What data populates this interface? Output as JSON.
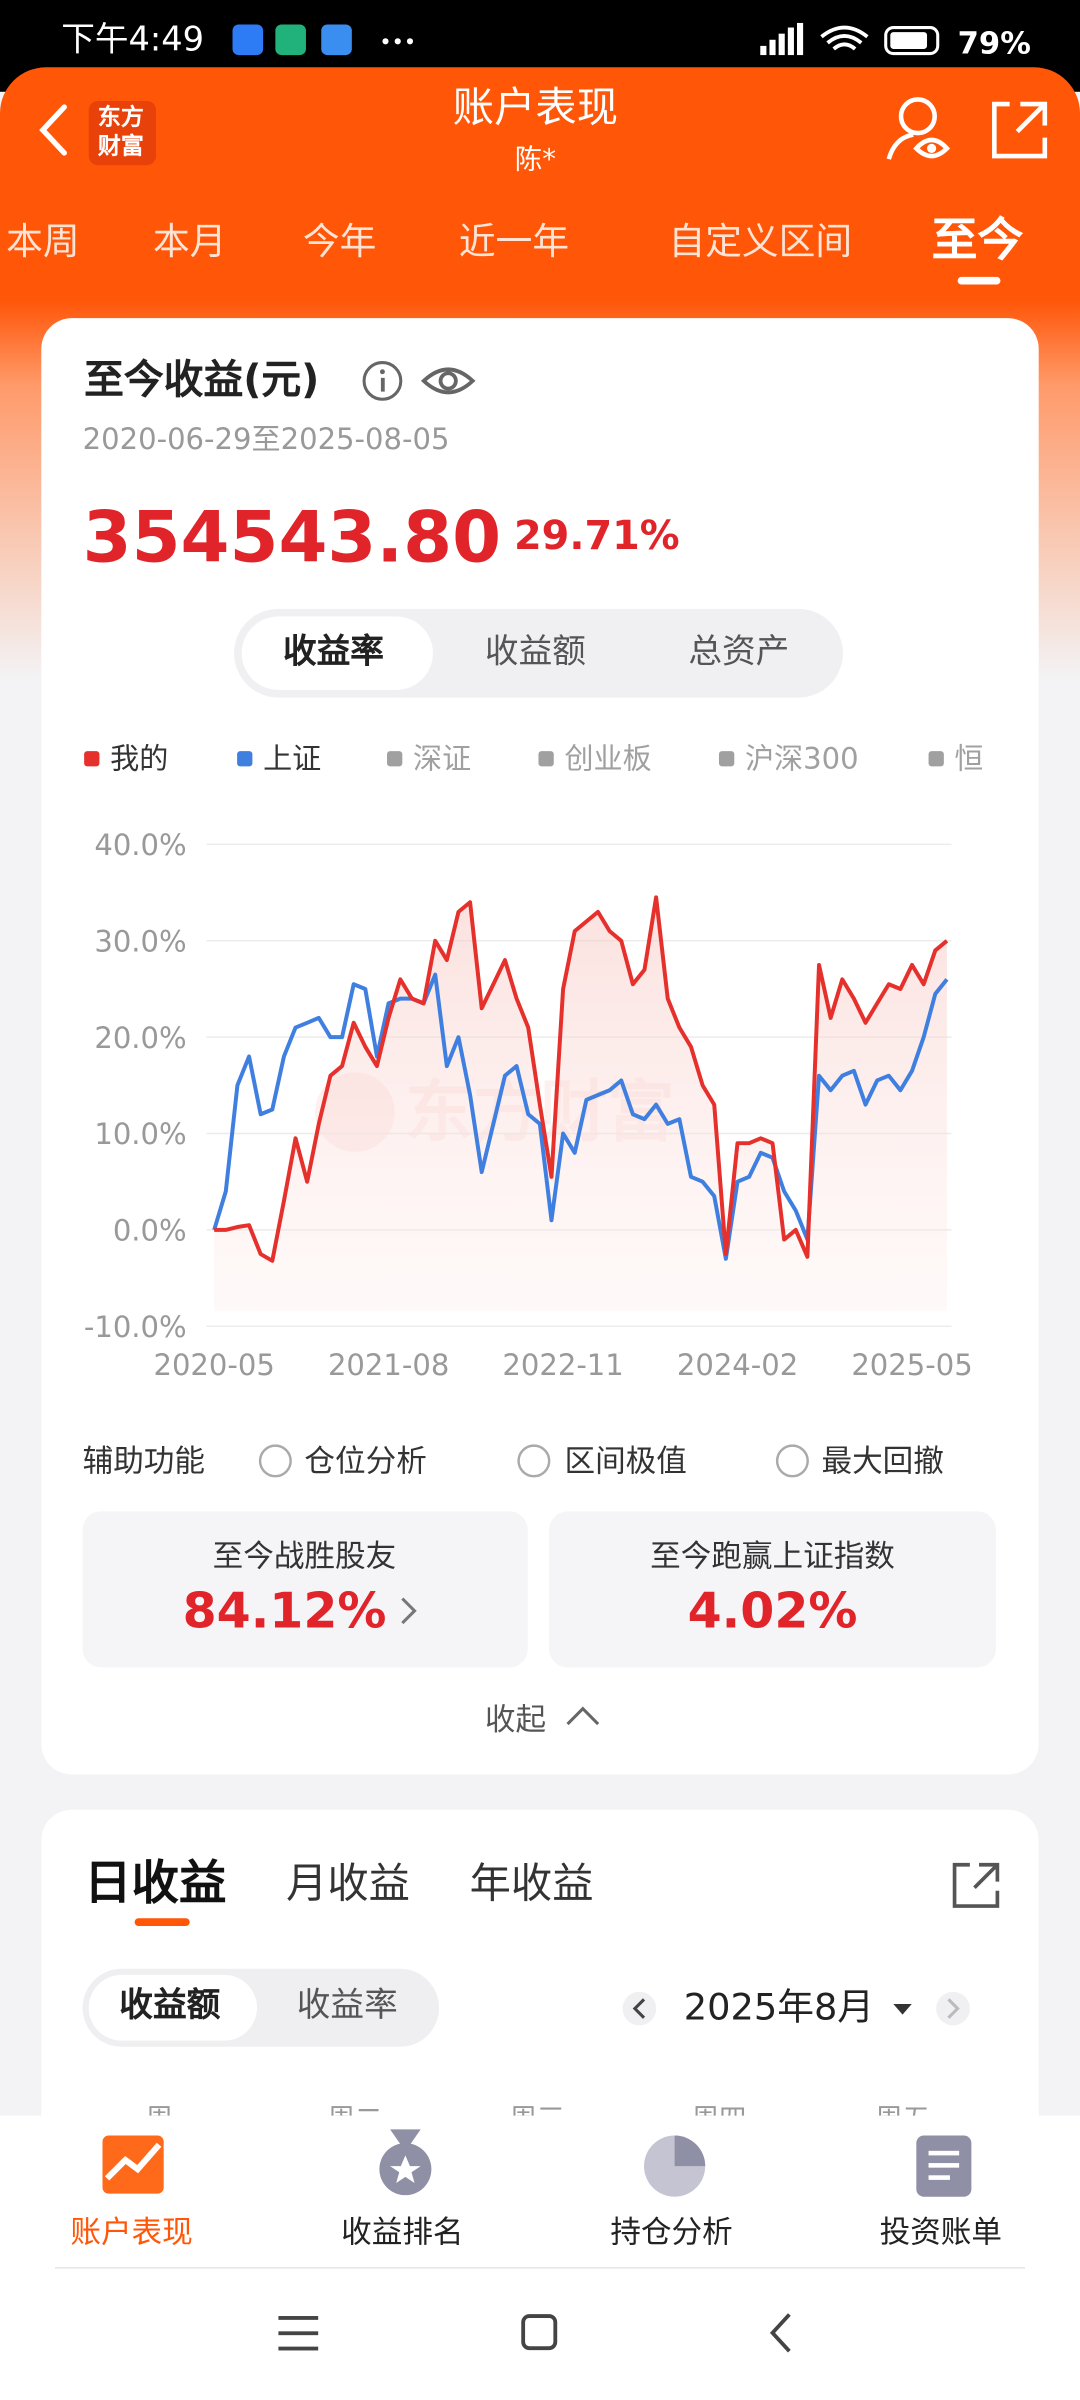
{
  "status_bar": {
    "time": "下午4:49",
    "battery": "79%"
  },
  "header": {
    "logo": [
      "东方",
      "财富"
    ],
    "title": "账户表现",
    "subtitle": "陈*"
  },
  "period_tabs": {
    "items": [
      "本周",
      "本月",
      "今年",
      "近一年",
      "自定义区间",
      "至今"
    ],
    "active": 5
  },
  "summary": {
    "title": "至今收益(元)",
    "date_range": "2020-06-29至2025-08-05",
    "amount": "354543.80",
    "rate": "29.71%"
  },
  "chart_tabs": {
    "items": [
      "收益率",
      "收益额",
      "总资产"
    ],
    "active": 0
  },
  "chart": {
    "type": "line",
    "watermark": "东方财富",
    "x": [
      0,
      1,
      2,
      3,
      4,
      5,
      6,
      7,
      8,
      9,
      10,
      11,
      12,
      13,
      14,
      15,
      16,
      17,
      18,
      19,
      20,
      21,
      22,
      23,
      24,
      25,
      26,
      27,
      28,
      29,
      30,
      31,
      32,
      33,
      34,
      35,
      36,
      37,
      38,
      39,
      40,
      41,
      42,
      43,
      44,
      45,
      46,
      47,
      48,
      49,
      50,
      51,
      52,
      53,
      54,
      55,
      56,
      57,
      58,
      59,
      60,
      61,
      62,
      63
    ],
    "xlim": [
      0,
      63
    ],
    "xticks": [
      {
        "value": 0,
        "label": "2020-05"
      },
      {
        "value": 15,
        "label": "2021-08"
      },
      {
        "value": 30,
        "label": "2022-11"
      },
      {
        "value": 45,
        "label": "2024-02"
      },
      {
        "value": 60,
        "label": "2025-05"
      }
    ],
    "ylim": [
      -10,
      40
    ],
    "yticks": [
      {
        "value": -10,
        "label": "-10.0%"
      },
      {
        "value": 0,
        "label": "0.0%"
      },
      {
        "value": 10,
        "label": "10.0%"
      },
      {
        "value": 20,
        "label": "20.0%"
      },
      {
        "value": 30,
        "label": "30.0%"
      },
      {
        "value": 40,
        "label": "40.0%"
      }
    ],
    "grid": true,
    "series": [
      {
        "name": "我的",
        "color": "#e5302c",
        "values": [
          0,
          0,
          0.3,
          0.5,
          -2.5,
          -3.2,
          3,
          9.5,
          5,
          11,
          16,
          17,
          21.5,
          19,
          17,
          22,
          26,
          24,
          23.5,
          30,
          28,
          33,
          34,
          23,
          25.5,
          28,
          24,
          21,
          13,
          5.5,
          25,
          31,
          32,
          33,
          31,
          30,
          25.5,
          27,
          34.5,
          24,
          21,
          19,
          15,
          13,
          -2.5,
          9,
          9,
          9.5,
          9,
          -1,
          0,
          -2.8,
          27.5,
          22,
          26,
          24,
          21.5,
          23.5,
          25.5,
          25,
          27.5,
          25.5,
          29,
          30
        ]
      },
      {
        "name": "上证",
        "color": "#3f7fe0",
        "values": [
          0,
          4,
          15,
          18,
          12,
          12.5,
          18,
          21,
          21.5,
          22,
          20,
          20,
          25.5,
          25,
          18,
          23.5,
          24,
          24,
          23.5,
          26.5,
          17,
          20,
          14,
          6,
          11,
          16,
          17,
          12,
          11,
          1,
          10,
          8,
          13.5,
          14,
          14.5,
          15.5,
          12,
          11.5,
          13,
          11,
          11.5,
          5.5,
          5,
          3.5,
          -3,
          5,
          5.5,
          8,
          7.5,
          4,
          2,
          -1,
          16,
          14.5,
          16,
          16.5,
          13,
          15.5,
          16,
          14.5,
          16.5,
          20,
          24.5,
          26
        ]
      }
    ],
    "inactive_legend": [
      "深证",
      "创业板",
      "沪深300",
      "恒"
    ],
    "inactive_color": "#a0a0a0"
  },
  "aux": {
    "label": "辅助功能",
    "options": [
      "仓位分析",
      "区间极值",
      "最大回撤"
    ]
  },
  "stats": [
    {
      "label": "至今战胜股友",
      "value": "84.12%"
    },
    {
      "label": "至今跑赢上证指数",
      "value": "4.02%"
    }
  ],
  "collapse": "收起",
  "daily": {
    "tabs": [
      "日收益",
      "月收益",
      "年收益"
    ],
    "active_tab": 0,
    "toggle": [
      "收益额",
      "收益率"
    ],
    "active_toggle": 0,
    "month": "2025年8月",
    "weekdays": [
      "周一",
      "周二",
      "周三",
      "周四",
      "周五"
    ]
  },
  "bottom_nav": {
    "items": [
      "账户表现",
      "收益排名",
      "持仓分析",
      "投资账单"
    ],
    "active": 0
  }
}
